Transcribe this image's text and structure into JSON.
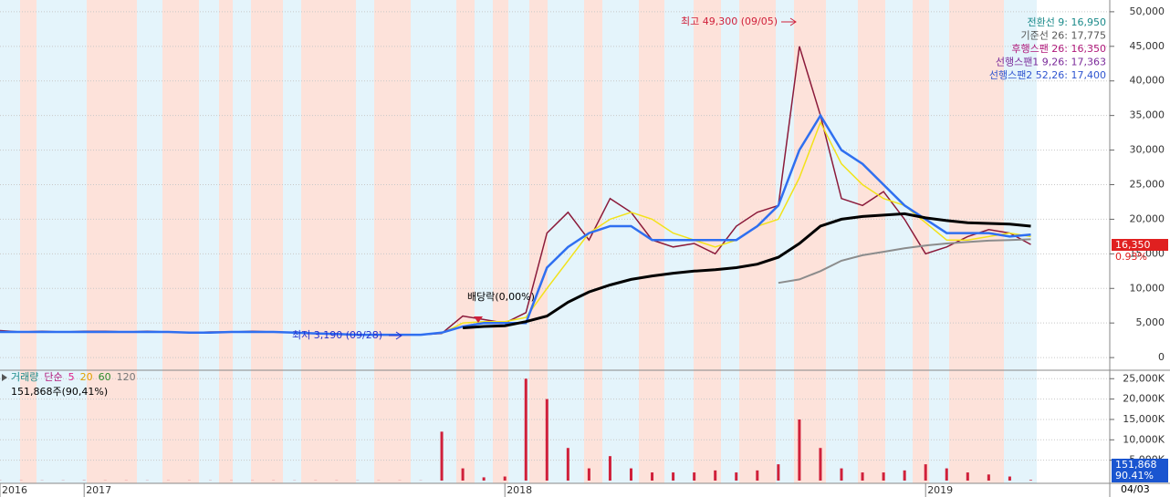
{
  "chart_data": {
    "type": "stock",
    "categories": [
      "2016",
      null,
      null,
      null,
      "2017",
      null,
      null,
      null,
      null,
      null,
      null,
      null,
      null,
      null,
      null,
      null,
      null,
      null,
      null,
      null,
      null,
      null,
      null,
      null,
      "2018",
      null,
      null,
      null,
      null,
      null,
      null,
      null,
      null,
      null,
      null,
      null,
      null,
      null,
      null,
      null,
      null,
      null,
      null,
      null,
      "2019",
      null,
      null,
      null,
      null,
      null
    ],
    "date_label": "04/03",
    "ylim": [
      -1700,
      51700
    ],
    "yticks": [
      0,
      {
        "value": 5000,
        "label": "5,000"
      },
      {
        "value": 10000,
        "label": "10,000"
      },
      {
        "value": 15000,
        "label": "15,000"
      },
      {
        "value": 20000,
        "label": "20,000"
      },
      {
        "value": 25000,
        "label": "25,000"
      },
      {
        "value": 30000,
        "label": "30,000"
      },
      {
        "value": 35000,
        "label": "35,000"
      },
      {
        "value": 40000,
        "label": "40,000"
      },
      {
        "value": 45000,
        "label": "45,000"
      },
      {
        "value": 50000,
        "label": "50,000"
      }
    ],
    "series": [
      {
        "name": "close",
        "color": "#8b1a3a",
        "width": 1.5,
        "values": [
          3900,
          3700,
          3800,
          3700,
          3800,
          3800,
          3700,
          3800,
          3700,
          3600,
          3700,
          3700,
          3800,
          3700,
          3600,
          3500,
          3400,
          3300,
          3300,
          3300,
          3300,
          3500,
          6000,
          5500,
          5000,
          6500,
          18000,
          21000,
          17000,
          23000,
          21000,
          17000,
          16000,
          16500,
          15000,
          19000,
          21000,
          22000,
          45000,
          35000,
          23000,
          22000,
          24000,
          20000,
          15000,
          16000,
          17500,
          18500,
          18000,
          16350
        ]
      },
      {
        "name": "ma20",
        "color": "#f2e21a",
        "width": 1.5,
        "values": [
          null,
          null,
          null,
          null,
          null,
          null,
          null,
          null,
          null,
          null,
          null,
          null,
          null,
          null,
          null,
          null,
          null,
          null,
          null,
          null,
          null,
          3500,
          5000,
          5200,
          5200,
          5800,
          10000,
          14000,
          18000,
          20000,
          21000,
          20000,
          18000,
          17000,
          16000,
          17000,
          19000,
          20000,
          26000,
          34000,
          28000,
          25000,
          23000,
          22000,
          19500,
          17000,
          17000,
          17500,
          18000,
          17500
        ]
      },
      {
        "name": "kijun",
        "color": "#2f6ff0",
        "width": 2.5,
        "values": [
          3700,
          3700,
          3700,
          3700,
          3700,
          3700,
          3700,
          3700,
          3700,
          3600,
          3600,
          3700,
          3700,
          3700,
          3600,
          3500,
          3400,
          3300,
          3300,
          3300,
          3300,
          3600,
          4500,
          5000,
          5000,
          5000,
          13000,
          16000,
          18000,
          19000,
          19000,
          17000,
          17000,
          17000,
          17000,
          17000,
          19000,
          22000,
          30000,
          35000,
          30000,
          28000,
          25000,
          22000,
          20000,
          18000,
          18000,
          18000,
          17500,
          17775
        ]
      },
      {
        "name": "ma120",
        "color": "#000000",
        "width": 3,
        "values": [
          null,
          null,
          null,
          null,
          null,
          null,
          null,
          null,
          null,
          null,
          null,
          null,
          null,
          null,
          null,
          null,
          null,
          null,
          null,
          null,
          null,
          null,
          4300,
          4500,
          4600,
          5200,
          6000,
          8000,
          9500,
          10500,
          11300,
          11800,
          12200,
          12500,
          12700,
          13000,
          13500,
          14500,
          16500,
          19000,
          20000,
          20400,
          20600,
          20800,
          20200,
          19800,
          19500,
          19400,
          19300,
          19000
        ]
      },
      {
        "name": "ma240",
        "color": "#8c8c8c",
        "width": 2,
        "values": [
          null,
          null,
          null,
          null,
          null,
          null,
          null,
          null,
          null,
          null,
          null,
          null,
          null,
          null,
          null,
          null,
          null,
          null,
          null,
          null,
          null,
          null,
          null,
          null,
          null,
          null,
          null,
          null,
          null,
          null,
          null,
          null,
          null,
          null,
          null,
          null,
          null,
          10800,
          11300,
          12500,
          14000,
          14800,
          15300,
          15800,
          16200,
          16500,
          16700,
          16900,
          17000,
          17100
        ]
      }
    ],
    "high_label": "최고 49,300 (09/05)",
    "low_label": "최저 3,190 (09/28)",
    "dividend_label": "배당락(0,00%)",
    "ichimoku": [
      "전환선 9: 16,950",
      "기준선 26: 17,775",
      "후행스팬 26: 16,350",
      "선행스팬1 9,26: 17,363",
      "선행스팬2 52,26: 17,400"
    ],
    "ichimoku_colors": [
      "#1a8a8a",
      "#555555",
      "#b0187a",
      "#7a2a9a",
      "#2f55d0"
    ],
    "price_label": "16,350",
    "price_change": "0.93%",
    "volume": {
      "legend": [
        "거래량",
        "단순",
        "5",
        "20",
        "60",
        "120"
      ],
      "legend_colors": [
        "#1a8a8a",
        "#b0187a",
        "#e0208a",
        "#e0a000",
        "#2a8a2a",
        "#777777"
      ],
      "summary": "151,868주(90,41%)",
      "ylim": [
        0,
        26400
      ],
      "yticks": [
        {
          "value": 5000,
          "label": "5,000K"
        },
        {
          "value": 10000,
          "label": "10,000K"
        },
        {
          "value": 15000,
          "label": "15,000K"
        },
        {
          "value": 20000,
          "label": "20,000K"
        },
        {
          "value": 25000,
          "label": "25,000K"
        }
      ],
      "color": "#d0203a",
      "values": [
        50,
        40,
        40,
        40,
        60,
        40,
        40,
        40,
        40,
        40,
        40,
        40,
        40,
        40,
        40,
        40,
        40,
        40,
        40,
        40,
        40,
        12000,
        3000,
        800,
        1000,
        25000,
        20000,
        8000,
        3000,
        6000,
        3000,
        2000,
        2000,
        2000,
        2500,
        2000,
        2500,
        4000,
        15000,
        8000,
        3000,
        2000,
        2000,
        2500,
        4000,
        3000,
        2000,
        1500,
        1000,
        151.868
      ],
      "last_label": "151,868",
      "last_change": "90.41%"
    }
  }
}
